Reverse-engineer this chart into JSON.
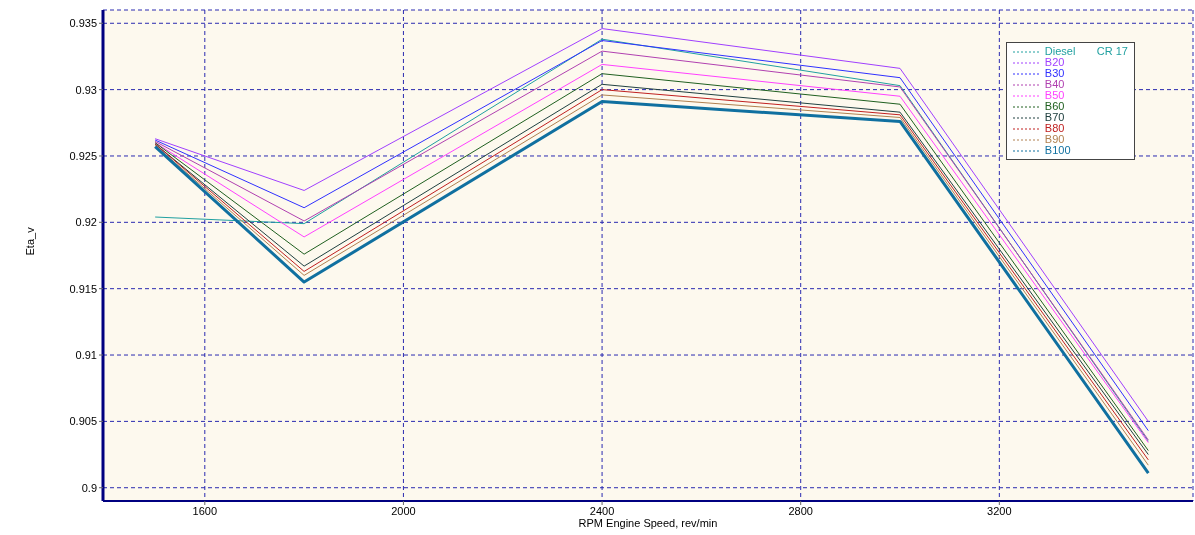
{
  "chart_data": {
    "type": "line",
    "xlabel": "RPM    Engine Speed, rev/min",
    "ylabel": "Eta_v",
    "legend_title": "CR 17",
    "x": [
      1500,
      1800,
      2400,
      3000,
      3500
    ],
    "xlim": [
      1395,
      3590
    ],
    "xticks": [
      1600,
      2000,
      2400,
      2800,
      3200
    ],
    "ylim": [
      0.899,
      0.936
    ],
    "yticks": [
      0.9,
      0.905,
      0.91,
      0.915,
      0.92,
      0.925,
      0.93,
      0.935
    ],
    "grid": true,
    "legend": "top right",
    "line_style": "solid",
    "marker": "none",
    "series": [
      {
        "name": "Diesel",
        "color": "#20a0a0",
        "values": [
          0.9204,
          0.9199,
          0.9338,
          0.9303,
          0.9035
        ]
      },
      {
        "name": "B20",
        "color": "#a040ff",
        "values": [
          0.9263,
          0.9224,
          0.9346,
          0.9316,
          0.905
        ]
      },
      {
        "name": "B30",
        "color": "#3030ff",
        "values": [
          0.9262,
          0.9211,
          0.9337,
          0.9309,
          0.9043
        ]
      },
      {
        "name": "B40",
        "color": "#b040b0",
        "values": [
          0.9261,
          0.9201,
          0.9329,
          0.9302,
          0.9036
        ]
      },
      {
        "name": "B50",
        "color": "#ff40ff",
        "values": [
          0.926,
          0.9189,
          0.9319,
          0.9295,
          0.9034
        ]
      },
      {
        "name": "B60",
        "color": "#206020",
        "values": [
          0.926,
          0.9176,
          0.9312,
          0.9289,
          0.9028
        ]
      },
      {
        "name": "B70",
        "color": "#204040",
        "values": [
          0.9259,
          0.9167,
          0.9304,
          0.9283,
          0.9025
        ]
      },
      {
        "name": "B80",
        "color": "#c02020",
        "values": [
          0.9259,
          0.9163,
          0.93,
          0.9281,
          0.9021
        ]
      },
      {
        "name": "B90",
        "color": "#b08050",
        "values": [
          0.9258,
          0.916,
          0.9296,
          0.9279,
          0.9017
        ]
      },
      {
        "name": "B100",
        "color": "#1070a0",
        "values": [
          0.9257,
          0.9155,
          0.9291,
          0.9276,
          0.9011
        ]
      }
    ]
  }
}
